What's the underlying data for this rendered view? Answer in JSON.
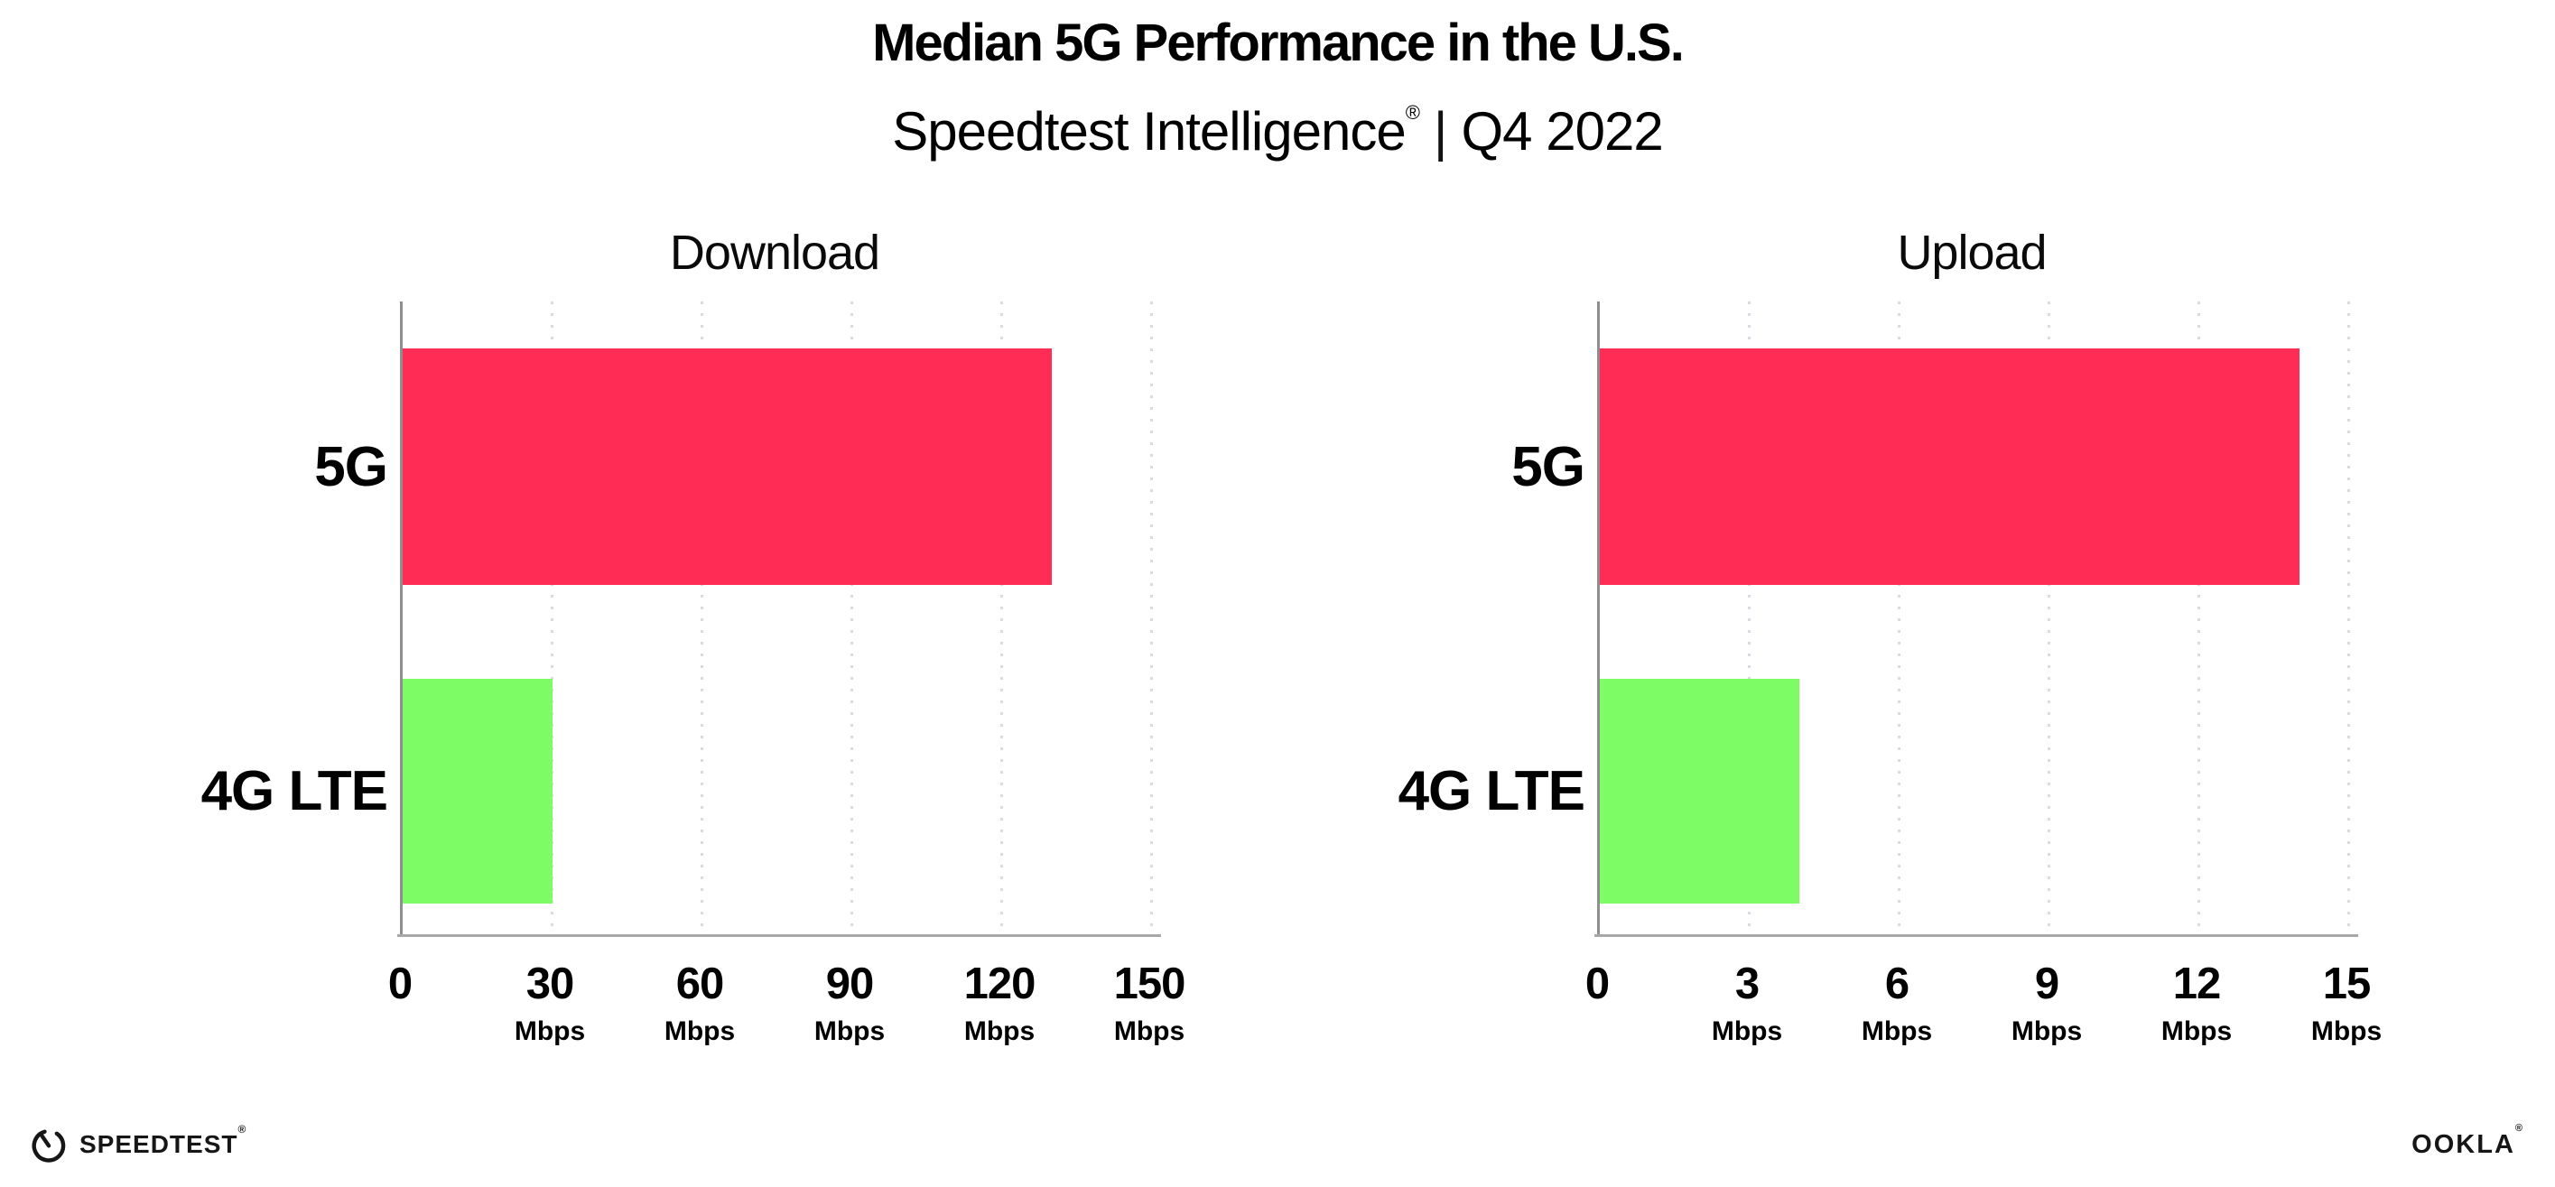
{
  "header": {
    "title": "Median 5G Performance in the U.S.",
    "subtitle_brand": "Speedtest Intelligence",
    "subtitle_reg": "®",
    "subtitle_sep": "|",
    "subtitle_period": "Q4 2022"
  },
  "colors": {
    "bar_5g": "#FF2D55",
    "bar_4g_lte": "#7DFC66",
    "y_axis_line": "#8e8e8e",
    "x_axis_line": "#a8a8a8",
    "grid_dots": "#d9dae3",
    "text": "#000000"
  },
  "chart_data": [
    {
      "type": "bar",
      "orientation": "horizontal",
      "title": "Download",
      "categories": [
        "5G",
        "4G LTE"
      ],
      "values": [
        130,
        30
      ],
      "unit": "Mbps",
      "xlim": [
        0,
        150
      ],
      "xticks": [
        0,
        30,
        60,
        90,
        120,
        150
      ],
      "grid": "dotted-vertical",
      "legend": "none"
    },
    {
      "type": "bar",
      "orientation": "horizontal",
      "title": "Upload",
      "categories": [
        "5G",
        "4G LTE"
      ],
      "values": [
        14,
        4
      ],
      "unit": "Mbps",
      "xlim": [
        0,
        15
      ],
      "xticks": [
        0,
        3,
        6,
        9,
        12,
        15
      ],
      "grid": "dotted-vertical",
      "legend": "none"
    }
  ],
  "footer": {
    "speedtest_label": "SPEEDTEST",
    "speedtest_reg": "®",
    "ookla_label": "OOKLA",
    "ookla_reg": "®"
  }
}
